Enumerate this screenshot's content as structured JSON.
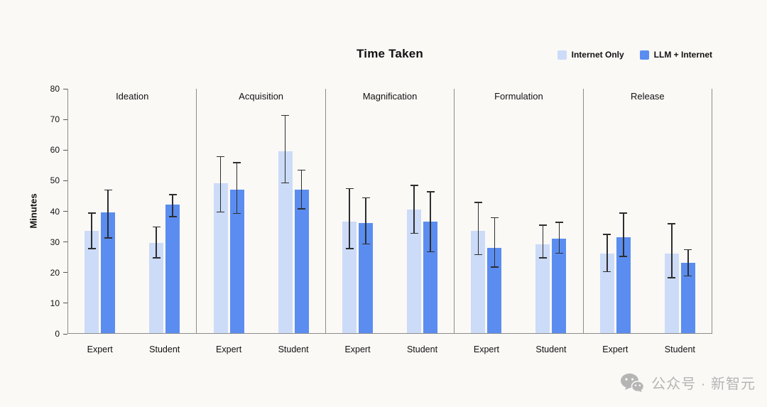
{
  "page": {
    "watermark_text": "公众号 · 新智元"
  },
  "chart_data": {
    "type": "bar",
    "title": "Time Taken",
    "ylabel": "Minutes",
    "ylim": [
      0,
      80
    ],
    "yticks": [
      0,
      10,
      20,
      30,
      40,
      50,
      60,
      70,
      80
    ],
    "grid": false,
    "legend_position": "top-right",
    "error_bars": true,
    "panels": [
      "Ideation",
      "Acquisition",
      "Magnification",
      "Formulation",
      "Release"
    ],
    "groups": [
      "Expert",
      "Student"
    ],
    "series": [
      {
        "name": "Internet Only",
        "color": "#ccdbf7",
        "values": [
          [
            33.5,
            29.5
          ],
          [
            49,
            59.5
          ],
          [
            36.5,
            40.5
          ],
          [
            33.5,
            29
          ],
          [
            26,
            26
          ]
        ],
        "err_low": [
          [
            27.5,
            24.5
          ],
          [
            39.5,
            49
          ],
          [
            27.5,
            32.5
          ],
          [
            25.5,
            24.5
          ],
          [
            20,
            18
          ]
        ],
        "err_high": [
          [
            39.5,
            35
          ],
          [
            58,
            71.5
          ],
          [
            47.5,
            48.5
          ],
          [
            43,
            35.5
          ],
          [
            32.5,
            36
          ]
        ]
      },
      {
        "name": "LLM + Internet",
        "color": "#5b8df0",
        "values": [
          [
            39.5,
            42
          ],
          [
            47,
            47
          ],
          [
            36,
            36.5
          ],
          [
            28,
            31
          ],
          [
            31.5,
            23
          ]
        ],
        "err_low": [
          [
            31,
            38
          ],
          [
            39,
            40.5
          ],
          [
            29,
            26.5
          ],
          [
            21.5,
            26
          ],
          [
            25,
            18.5
          ]
        ],
        "err_high": [
          [
            47,
            45.5
          ],
          [
            56,
            53.5
          ],
          [
            44.5,
            46.5
          ],
          [
            38,
            36.5
          ],
          [
            39.5,
            27.5
          ]
        ]
      }
    ]
  }
}
